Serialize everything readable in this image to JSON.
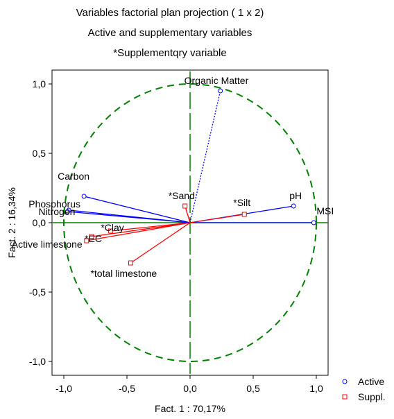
{
  "chart_data": {
    "type": "scatter",
    "title": "Variables factorial  plan  projection  ( 1 x   2)",
    "subtitle": "Active and supplementary variables",
    "note": "*Supplementqry variable",
    "xlabel": "Fact. 1  : 70,17%",
    "ylabel": "Fact. 2  : 16,34%",
    "xlim": [
      -1.1,
      1.1
    ],
    "ylim": [
      -1.1,
      1.1
    ],
    "xticks": [
      "-1,0",
      "-0,5",
      "0,0",
      "0,5",
      "1,0"
    ],
    "xtick_values": [
      -1.0,
      -0.5,
      0.0,
      0.5,
      1.0
    ],
    "yticks": [
      "1,0",
      "0,5",
      "0,0",
      "-0,5",
      "-1,0"
    ],
    "ytick_values": [
      1.0,
      0.5,
      0.0,
      -0.5,
      -1.0
    ],
    "unit_circle": true,
    "series": [
      {
        "name": "Active",
        "color": "#0000ff",
        "marker": "circle",
        "points": [
          {
            "label": "Organic Matter",
            "x": 0.24,
            "y": 0.95
          },
          {
            "label": "pH",
            "x": 0.82,
            "y": 0.12
          },
          {
            "label": "MSI",
            "x": 0.98,
            "y": 0.0
          },
          {
            "label": "Carbon",
            "x": -0.84,
            "y": 0.19
          },
          {
            "label": "Phosphorus",
            "x": -0.96,
            "y": 0.09
          },
          {
            "label": "Nitrogen",
            "x": -0.97,
            "y": 0.08
          }
        ]
      },
      {
        "name": "Suppl.",
        "color": "#ff0000",
        "marker": "square",
        "points": [
          {
            "label": "*Sand",
            "x": -0.04,
            "y": 0.12
          },
          {
            "label": "*Silt",
            "x": 0.43,
            "y": 0.06
          },
          {
            "label": "*Clay",
            "x": -0.63,
            "y": -0.06
          },
          {
            "label": "*EC",
            "x": -0.78,
            "y": -0.1
          },
          {
            "label": "Active limestone",
            "x": -0.82,
            "y": -0.13
          },
          {
            "label": "*total limestone",
            "x": -0.47,
            "y": -0.29
          }
        ]
      }
    ],
    "legend": {
      "position": "bottom-right",
      "entries": [
        "Active",
        "Suppl."
      ]
    }
  }
}
